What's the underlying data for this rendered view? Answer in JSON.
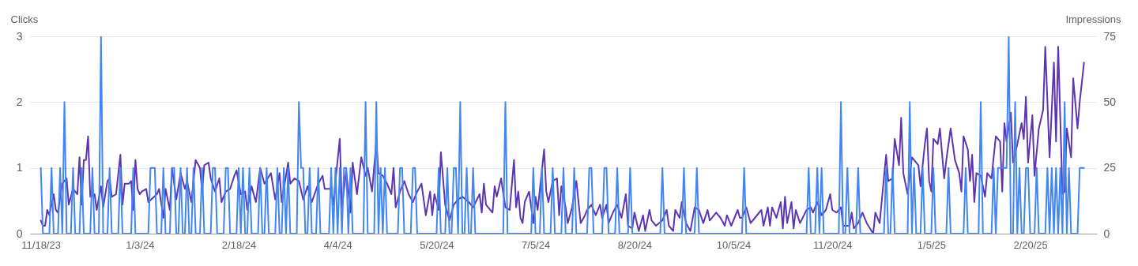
{
  "chart_data": {
    "type": "line",
    "ylabel": "Clicks",
    "y2label": "Impressions",
    "xlim": [
      "2023-11-13",
      "2025-03-23"
    ],
    "xticks": [
      {
        "value": "2023-11-18",
        "label": "11/18/23"
      },
      {
        "value": "2024-01-03",
        "label": "1/3/24"
      },
      {
        "value": "2024-02-18",
        "label": "2/18/24"
      },
      {
        "value": "2024-04-04",
        "label": "4/4/24"
      },
      {
        "value": "2024-05-20",
        "label": "5/20/24"
      },
      {
        "value": "2024-07-05",
        "label": "7/5/24"
      },
      {
        "value": "2024-08-20",
        "label": "8/20/24"
      },
      {
        "value": "2024-10-05",
        "label": "10/5/24"
      },
      {
        "value": "2024-11-20",
        "label": "11/20/24"
      },
      {
        "value": "2025-01-05",
        "label": "1/5/25"
      },
      {
        "value": "2025-02-20",
        "label": "2/20/25"
      }
    ],
    "ylim": [
      0,
      3
    ],
    "yticks": [
      0,
      1,
      2,
      3
    ],
    "y2lim": [
      0,
      75
    ],
    "y2ticks": [
      0,
      25,
      50,
      75
    ],
    "grid": "y",
    "line_style": "solid",
    "series": [
      {
        "color": "#4285f4",
        "x": [
          "2023-11-18",
          "2023-11-19",
          "2023-11-22",
          "2023-11-23",
          "2023-11-24",
          "2023-11-26",
          "2023-11-27",
          "2023-11-28",
          "2023-11-29",
          "2023-11-30",
          "2023-12-02",
          "2023-12-03",
          "2023-12-04",
          "2023-12-06",
          "2023-12-07",
          "2023-12-08",
          "2023-12-11",
          "2023-12-12",
          "2023-12-13",
          "2023-12-15",
          "2023-12-16",
          "2023-12-17",
          "2023-12-19",
          "2023-12-20",
          "2023-12-21",
          "2023-12-24",
          "2023-12-25",
          "2023-12-26",
          "2023-12-30",
          "2023-12-31",
          "2024-01-01",
          "2024-01-07",
          "2024-01-08",
          "2024-01-10",
          "2024-01-11",
          "2024-01-13",
          "2024-01-14",
          "2024-01-15",
          "2024-01-17",
          "2024-01-18",
          "2024-01-19",
          "2024-01-20",
          "2024-01-21",
          "2024-01-22",
          "2024-01-23",
          "2024-01-24",
          "2024-01-25",
          "2024-01-26",
          "2024-01-27",
          "2024-01-28",
          "2024-01-29",
          "2024-01-31",
          "2024-02-01",
          "2024-02-02",
          "2024-02-05",
          "2024-02-06",
          "2024-02-07",
          "2024-02-08",
          "2024-02-11",
          "2024-02-12",
          "2024-02-13",
          "2024-02-14",
          "2024-02-17",
          "2024-02-18",
          "2024-02-19",
          "2024-02-20",
          "2024-02-21",
          "2024-02-22",
          "2024-02-23",
          "2024-02-24",
          "2024-02-27",
          "2024-02-28",
          "2024-02-29",
          "2024-03-01",
          "2024-03-02",
          "2024-03-03",
          "2024-03-06",
          "2024-03-07",
          "2024-03-08",
          "2024-03-09",
          "2024-03-10",
          "2024-03-11",
          "2024-03-12",
          "2024-03-13",
          "2024-03-16",
          "2024-03-17",
          "2024-03-18",
          "2024-03-19",
          "2024-03-20",
          "2024-03-21",
          "2024-03-22",
          "2024-03-23",
          "2024-03-25",
          "2024-03-26",
          "2024-03-27",
          "2024-03-31",
          "2024-04-01",
          "2024-04-02",
          "2024-04-03",
          "2024-04-04",
          "2024-04-05",
          "2024-04-06",
          "2024-04-07",
          "2024-04-08",
          "2024-04-09",
          "2024-04-10",
          "2024-04-11",
          "2024-04-16",
          "2024-04-17",
          "2024-04-18",
          "2024-04-21",
          "2024-04-22",
          "2024-04-23",
          "2024-04-24",
          "2024-04-25",
          "2024-04-26",
          "2024-04-27",
          "2024-05-02",
          "2024-05-03",
          "2024-05-04",
          "2024-05-05",
          "2024-05-08",
          "2024-05-09",
          "2024-05-10",
          "2024-05-11",
          "2024-05-20",
          "2024-05-21",
          "2024-05-22",
          "2024-05-24",
          "2024-05-25",
          "2024-05-26",
          "2024-05-27",
          "2024-05-28",
          "2024-05-29",
          "2024-05-30",
          "2024-05-31",
          "2024-06-01",
          "2024-06-02",
          "2024-06-03",
          "2024-06-04",
          "2024-06-05",
          "2024-06-06",
          "2024-06-07",
          "2024-06-20",
          "2024-06-21",
          "2024-06-22",
          "2024-07-03",
          "2024-07-04",
          "2024-07-05",
          "2024-07-07",
          "2024-07-08",
          "2024-07-09",
          "2024-07-12",
          "2024-07-13",
          "2024-07-14",
          "2024-07-17",
          "2024-07-18",
          "2024-07-19",
          "2024-07-22",
          "2024-07-23",
          "2024-07-24",
          "2024-07-29",
          "2024-07-30",
          "2024-07-31",
          "2024-08-01",
          "2024-08-05",
          "2024-08-06",
          "2024-08-07",
          "2024-08-08",
          "2024-08-11",
          "2024-08-12",
          "2024-08-13",
          "2024-08-17",
          "2024-08-18",
          "2024-08-19",
          "2024-09-01",
          "2024-09-02",
          "2024-09-03",
          "2024-09-11",
          "2024-09-12",
          "2024-09-13",
          "2024-09-17",
          "2024-09-18",
          "2024-09-19",
          "2024-10-09",
          "2024-10-10",
          "2024-10-11",
          "2024-11-08",
          "2024-11-09",
          "2024-11-10",
          "2024-11-12",
          "2024-11-13",
          "2024-11-14",
          "2024-11-15",
          "2024-11-16",
          "2024-11-23",
          "2024-11-24",
          "2024-11-25",
          "2024-11-26",
          "2024-11-27",
          "2024-11-28",
          "2024-12-01",
          "2024-12-02",
          "2024-12-03",
          "2024-12-14",
          "2024-12-15",
          "2024-12-16",
          "2024-12-17",
          "2024-12-18",
          "2024-12-19",
          "2024-12-25",
          "2024-12-26",
          "2024-12-27",
          "2024-12-28",
          "2024-12-29",
          "2024-12-31",
          "2025-01-01",
          "2025-01-02",
          "2025-01-05",
          "2025-01-06",
          "2025-01-07",
          "2025-01-12",
          "2025-01-13",
          "2025-01-14",
          "2025-01-20",
          "2025-01-21",
          "2025-01-22",
          "2025-01-27",
          "2025-01-28",
          "2025-01-29",
          "2025-02-02",
          "2025-02-03",
          "2025-02-04",
          "2025-02-05",
          "2025-02-09",
          "2025-02-10",
          "2025-02-11",
          "2025-02-12",
          "2025-02-13",
          "2025-02-14",
          "2025-02-15",
          "2025-02-16",
          "2025-02-17",
          "2025-02-18",
          "2025-02-19",
          "2025-02-20",
          "2025-02-22",
          "2025-02-23",
          "2025-02-24",
          "2025-02-27",
          "2025-02-28",
          "2025-03-01",
          "2025-03-02",
          "2025-03-03",
          "2025-03-04",
          "2025-03-05",
          "2025-03-06",
          "2025-03-07",
          "2025-03-08",
          "2025-03-09",
          "2025-03-10",
          "2025-03-11",
          "2025-03-14",
          "2025-03-15",
          "2025-03-17"
        ],
        "values": [
          1,
          0,
          0,
          1,
          0,
          0,
          1,
          0,
          2,
          0,
          0,
          1,
          0,
          0,
          1,
          0,
          0,
          1,
          0,
          0,
          3,
          0,
          0,
          1,
          0,
          0,
          1,
          0,
          0,
          1,
          0,
          0,
          1,
          1,
          0,
          0,
          1,
          0,
          0,
          1,
          1,
          0,
          0,
          1,
          0,
          0,
          1,
          0,
          0,
          1,
          0,
          0,
          1,
          0,
          0,
          1,
          1,
          0,
          0,
          1,
          1,
          0,
          0,
          1,
          0,
          1,
          0,
          0,
          1,
          0,
          0,
          1,
          0,
          0,
          1,
          0,
          0,
          1,
          0,
          0,
          1,
          0,
          1,
          0,
          0,
          2,
          1,
          1,
          0,
          0,
          1,
          0,
          0,
          1,
          0,
          0,
          1,
          0,
          1,
          0,
          1,
          0,
          1,
          1,
          0,
          1,
          0,
          0,
          2,
          0,
          0,
          2,
          0,
          1,
          0,
          1,
          0,
          0,
          1,
          1,
          0,
          0,
          1,
          1,
          0,
          0,
          1,
          0,
          0,
          1,
          0,
          0,
          1,
          1,
          0,
          2,
          0,
          0,
          1,
          0,
          0,
          1,
          0,
          0,
          2,
          0,
          0,
          1,
          0,
          0,
          1,
          0,
          0,
          1,
          0,
          0,
          1,
          0,
          0,
          1,
          0,
          0,
          1,
          1,
          0,
          0,
          1,
          1,
          0,
          0,
          1,
          0,
          0,
          1,
          0,
          0,
          1,
          0,
          0,
          1,
          0,
          0,
          1,
          0,
          0,
          1,
          0,
          0,
          1,
          0,
          0,
          1,
          0,
          1,
          0,
          0,
          2,
          0,
          0,
          1,
          0,
          0,
          1,
          0,
          0,
          1,
          0,
          0,
          1,
          0,
          0,
          2,
          0,
          1,
          0,
          0,
          1,
          0,
          0,
          1,
          0,
          0,
          1,
          0,
          0,
          1,
          0,
          0,
          2,
          0,
          0,
          1,
          0,
          1,
          1,
          3,
          0,
          0,
          2,
          0,
          1,
          0,
          0,
          1,
          1,
          0,
          0,
          1,
          0,
          0,
          1,
          0,
          1,
          0,
          1,
          0,
          1,
          0,
          2,
          0,
          1,
          0,
          0,
          1,
          1
        ]
      },
      {
        "color": "#5e35b1",
        "axis": "y2",
        "x": [
          "2023-11-18",
          "2023-11-19",
          "2023-11-20",
          "2023-11-21",
          "2023-11-22",
          "2023-11-24",
          "2023-11-25",
          "2023-11-26",
          "2023-11-28",
          "2023-11-30",
          "2023-12-01",
          "2023-12-03",
          "2023-12-05",
          "2023-12-06",
          "2023-12-07",
          "2023-12-08",
          "2023-12-09",
          "2023-12-10",
          "2023-12-11",
          "2023-12-13",
          "2023-12-14",
          "2023-12-16",
          "2023-12-17",
          "2023-12-19",
          "2023-12-20",
          "2023-12-21",
          "2023-12-23",
          "2023-12-25",
          "2023-12-26",
          "2023-12-27",
          "2023-12-29",
          "2023-12-30",
          "2023-12-31",
          "2024-01-01",
          "2024-01-02",
          "2024-01-03",
          "2024-01-04",
          "2024-01-06",
          "2024-01-07",
          "2024-01-11",
          "2024-01-12",
          "2024-01-14",
          "2024-01-15",
          "2024-01-17",
          "2024-01-18",
          "2024-01-20",
          "2024-01-22",
          "2024-01-24",
          "2024-01-25",
          "2024-01-27",
          "2024-01-29",
          "2024-01-31",
          "2024-02-01",
          "2024-02-02",
          "2024-02-04",
          "2024-02-05",
          "2024-02-07",
          "2024-02-09",
          "2024-02-10",
          "2024-02-12",
          "2024-02-14",
          "2024-02-16",
          "2024-02-17",
          "2024-02-19",
          "2024-02-21",
          "2024-02-22",
          "2024-02-24",
          "2024-02-26",
          "2024-02-28",
          "2024-03-01",
          "2024-03-04",
          "2024-03-06",
          "2024-03-08",
          "2024-03-09",
          "2024-03-12",
          "2024-03-13",
          "2024-03-15",
          "2024-03-17",
          "2024-03-19",
          "2024-03-21",
          "2024-03-23",
          "2024-03-26",
          "2024-03-28",
          "2024-03-29",
          "2024-04-01",
          "2024-04-02",
          "2024-04-03",
          "2024-04-05",
          "2024-04-06",
          "2024-04-08",
          "2024-04-10",
          "2024-04-11",
          "2024-04-13",
          "2024-04-15",
          "2024-04-17",
          "2024-04-18",
          "2024-04-20",
          "2024-04-22",
          "2024-04-23",
          "2024-04-25",
          "2024-04-27",
          "2024-04-29",
          "2024-04-30",
          "2024-05-01",
          "2024-05-03",
          "2024-05-05",
          "2024-05-07",
          "2024-05-09",
          "2024-05-11",
          "2024-05-13",
          "2024-05-15",
          "2024-05-17",
          "2024-05-18",
          "2024-05-19",
          "2024-05-21",
          "2024-05-22",
          "2024-05-24",
          "2024-05-26",
          "2024-05-28",
          "2024-05-30",
          "2024-06-01",
          "2024-06-04",
          "2024-06-06",
          "2024-06-09",
          "2024-06-10",
          "2024-06-11",
          "2024-06-12",
          "2024-06-15",
          "2024-06-16",
          "2024-06-17",
          "2024-06-19",
          "2024-06-21",
          "2024-06-23",
          "2024-06-25",
          "2024-06-26",
          "2024-06-27",
          "2024-06-28",
          "2024-06-29",
          "2024-06-30",
          "2024-07-02",
          "2024-07-04",
          "2024-07-05",
          "2024-07-06",
          "2024-07-09",
          "2024-07-10",
          "2024-07-11",
          "2024-07-13",
          "2024-07-15",
          "2024-07-16",
          "2024-07-17",
          "2024-07-19",
          "2024-07-20",
          "2024-07-22",
          "2024-07-24",
          "2024-07-26",
          "2024-07-28",
          "2024-07-29",
          "2024-07-31",
          "2024-08-02",
          "2024-08-04",
          "2024-08-05",
          "2024-08-07",
          "2024-08-08",
          "2024-08-10",
          "2024-08-12",
          "2024-08-14",
          "2024-08-16",
          "2024-08-17",
          "2024-08-19",
          "2024-08-20",
          "2024-08-22",
          "2024-08-24",
          "2024-08-25",
          "2024-08-27",
          "2024-08-28",
          "2024-08-30",
          "2024-09-02",
          "2024-09-04",
          "2024-09-05",
          "2024-09-07",
          "2024-09-08",
          "2024-09-10",
          "2024-09-11",
          "2024-09-13",
          "2024-09-15",
          "2024-09-17",
          "2024-09-19",
          "2024-09-21",
          "2024-09-23",
          "2024-09-24",
          "2024-09-27",
          "2024-09-29",
          "2024-10-01",
          "2024-10-02",
          "2024-10-04",
          "2024-10-07",
          "2024-10-08",
          "2024-10-09",
          "2024-10-11",
          "2024-10-13",
          "2024-10-15",
          "2024-10-18",
          "2024-10-19",
          "2024-10-21",
          "2024-10-22",
          "2024-10-23",
          "2024-10-25",
          "2024-10-27",
          "2024-10-28",
          "2024-10-29",
          "2024-10-30",
          "2024-11-01",
          "2024-11-02",
          "2024-11-03",
          "2024-11-05",
          "2024-11-08",
          "2024-11-10",
          "2024-11-11",
          "2024-11-13",
          "2024-11-15",
          "2024-11-17",
          "2024-11-19",
          "2024-11-20",
          "2024-11-22",
          "2024-11-24",
          "2024-11-25",
          "2024-11-28",
          "2024-11-29",
          "2024-11-30",
          "2024-12-02",
          "2024-12-04",
          "2024-12-06",
          "2024-12-09",
          "2024-12-10",
          "2024-12-12",
          "2024-12-15",
          "2024-12-16",
          "2024-12-18",
          "2024-12-19",
          "2024-12-21",
          "2024-12-22",
          "2024-12-23",
          "2024-12-25",
          "2024-12-27",
          "2024-12-28",
          "2024-12-30",
          "2024-12-31",
          "2025-01-02",
          "2025-01-03",
          "2025-01-04",
          "2025-01-05",
          "2025-01-06",
          "2025-01-08",
          "2025-01-09",
          "2025-01-11",
          "2025-01-12",
          "2025-01-14",
          "2025-01-16",
          "2025-01-18",
          "2025-01-19",
          "2025-01-20",
          "2025-01-22",
          "2025-01-23",
          "2025-01-24",
          "2025-01-25",
          "2025-01-26",
          "2025-01-28",
          "2025-01-30",
          "2025-01-31",
          "2025-02-02",
          "2025-02-04",
          "2025-02-06",
          "2025-02-07",
          "2025-02-08",
          "2025-02-09",
          "2025-02-11",
          "2025-02-12",
          "2025-02-14",
          "2025-02-16",
          "2025-02-17",
          "2025-02-18",
          "2025-02-19",
          "2025-02-21",
          "2025-02-22",
          "2025-02-24",
          "2025-02-26",
          "2025-02-27",
          "2025-03-01",
          "2025-03-03",
          "2025-03-04",
          "2025-03-05",
          "2025-03-07",
          "2025-03-08",
          "2025-03-09",
          "2025-03-11",
          "2025-03-12",
          "2025-03-14",
          "2025-03-15",
          "2025-03-17"
        ],
        "values": [
          5,
          3,
          3,
          9,
          7,
          15,
          9,
          8,
          19,
          21,
          11,
          17,
          15,
          29,
          11,
          28,
          28,
          37,
          14,
          15,
          9,
          18,
          10,
          20,
          21,
          14,
          15,
          30,
          11,
          19,
          19,
          20,
          9,
          28,
          17,
          15,
          16,
          17,
          12,
          15,
          17,
          6,
          17,
          9,
          25,
          13,
          23,
          17,
          20,
          12,
          28,
          25,
          16,
          26,
          27,
          21,
          16,
          21,
          12,
          16,
          17,
          22,
          24,
          15,
          16,
          9,
          18,
          12,
          25,
          19,
          23,
          13,
          23,
          12,
          27,
          19,
          21,
          20,
          13,
          18,
          12,
          19,
          22,
          17,
          17,
          11,
          20,
          36,
          10,
          24,
          8,
          27,
          15,
          29,
          22,
          25,
          16,
          35,
          23,
          22,
          19,
          15,
          25,
          10,
          16,
          20,
          15,
          12,
          16,
          19,
          7,
          16,
          7,
          15,
          9,
          31,
          11,
          5,
          11,
          13,
          14,
          12,
          10,
          15,
          8,
          19,
          11,
          8,
          18,
          14,
          21,
          10,
          9,
          28,
          10,
          16,
          6,
          4,
          12,
          16,
          4,
          14,
          9,
          32,
          16,
          12,
          20,
          21,
          7,
          18,
          10,
          4,
          10,
          20,
          4,
          7,
          9,
          11,
          7,
          11,
          6,
          11,
          4,
          8,
          11,
          6,
          15,
          3,
          2,
          8,
          1,
          7,
          1,
          9,
          5,
          3,
          5,
          9,
          3,
          1,
          9,
          6,
          12,
          4,
          1,
          10,
          9,
          4,
          9,
          5,
          8,
          6,
          3,
          7,
          3,
          9,
          6,
          6,
          10,
          4,
          6,
          9,
          3,
          10,
          3,
          10,
          6,
          12,
          2,
          14,
          4,
          12,
          2,
          9,
          4,
          9,
          10,
          8,
          12,
          7,
          9,
          15,
          9,
          8,
          10,
          3,
          3,
          8,
          2,
          4,
          8,
          4,
          0,
          8,
          4,
          30,
          20,
          21,
          36,
          26,
          44,
          23,
          15,
          29,
          28,
          26,
          18,
          34,
          40,
          20,
          16,
          36,
          34,
          40,
          21,
          28,
          40,
          28,
          23,
          16,
          37,
          32,
          20,
          30,
          12,
          23,
          22,
          14,
          23,
          21,
          37,
          35,
          16,
          42,
          35,
          46,
          27,
          34,
          42,
          36,
          52,
          27,
          45,
          22,
          40,
          47,
          71,
          29,
          65,
          35,
          71,
          15,
          16,
          40,
          29,
          59,
          40,
          50,
          65
        ]
      }
    ]
  }
}
